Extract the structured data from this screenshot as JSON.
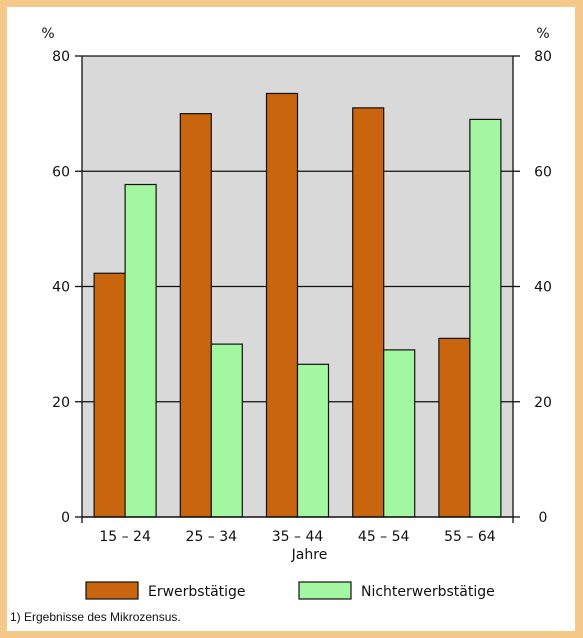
{
  "chart_data": {
    "type": "bar",
    "categories": [
      "15 – 24",
      "25 – 34",
      "35 – 44",
      "45 – 54",
      "55 – 64"
    ],
    "series": [
      {
        "name": "Erwerbstätige",
        "values": [
          42.3,
          70.0,
          73.5,
          71.0,
          31.0
        ],
        "color": "#c8650e"
      },
      {
        "name": "Nichterwerbstätige",
        "values": [
          57.7,
          30.0,
          26.5,
          29.0,
          69.0
        ],
        "color": "#a3f7a0"
      }
    ],
    "xlabel": "Jahre",
    "ylabel_left": "%",
    "ylabel_right": "%",
    "ylim": [
      0,
      80
    ],
    "yticks": [
      0,
      20,
      40,
      60,
      80
    ],
    "grid": true,
    "plot_background": "#d9d9d9",
    "legend_position": "bottom"
  },
  "footnote": "1) Ergebnisse des Mikrozensus."
}
